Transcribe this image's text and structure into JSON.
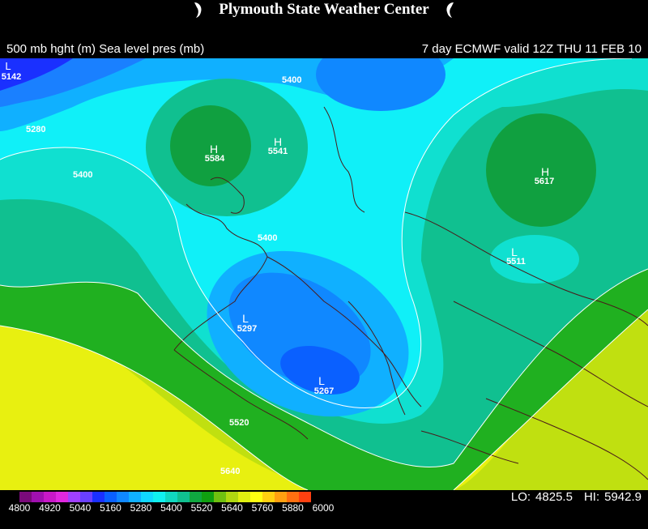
{
  "header": {
    "title": "Plymouth State Weather Center",
    "subtitle_left": "500 mb hght (m) Sea level pres (mb)",
    "subtitle_right": "7 day ECMWF  valid 12Z  THU  11 FEB 10"
  },
  "map": {
    "pressure_labels": [
      {
        "text": "L",
        "label": "5142"
      },
      {
        "text": "H",
        "label": "5584"
      },
      {
        "text": "H",
        "label": "5541"
      },
      {
        "text": "H",
        "label": "5617"
      },
      {
        "text": "L",
        "label": "5511"
      },
      {
        "text": "L",
        "label": "5297"
      },
      {
        "text": "L",
        "label": "5267"
      }
    ],
    "contour_labels": [
      "5280",
      "5400",
      "5400",
      "5400",
      "5520",
      "5640"
    ]
  },
  "colorbar": {
    "colors": [
      "#7a0a7a",
      "#a010b0",
      "#c818c8",
      "#e028e0",
      "#a040ff",
      "#6a40ff",
      "#1a30ff",
      "#0a60ff",
      "#1088ff",
      "#10b0ff",
      "#10d8ff",
      "#10f0f0",
      "#10d8c0",
      "#10c090",
      "#10a840",
      "#10a010",
      "#70c010",
      "#b0d810",
      "#e0f010",
      "#ffff10",
      "#ffd010",
      "#ffa010",
      "#ff7010",
      "#ff4010"
    ],
    "labels": [
      "4800",
      "4920",
      "5040",
      "5160",
      "5280",
      "5400",
      "5520",
      "5640",
      "5760",
      "5880",
      "6000"
    ]
  },
  "stats": {
    "lo_label": "LO:",
    "lo_value": "4825.5",
    "hi_label": "HI:",
    "hi_value": "5942.9"
  }
}
